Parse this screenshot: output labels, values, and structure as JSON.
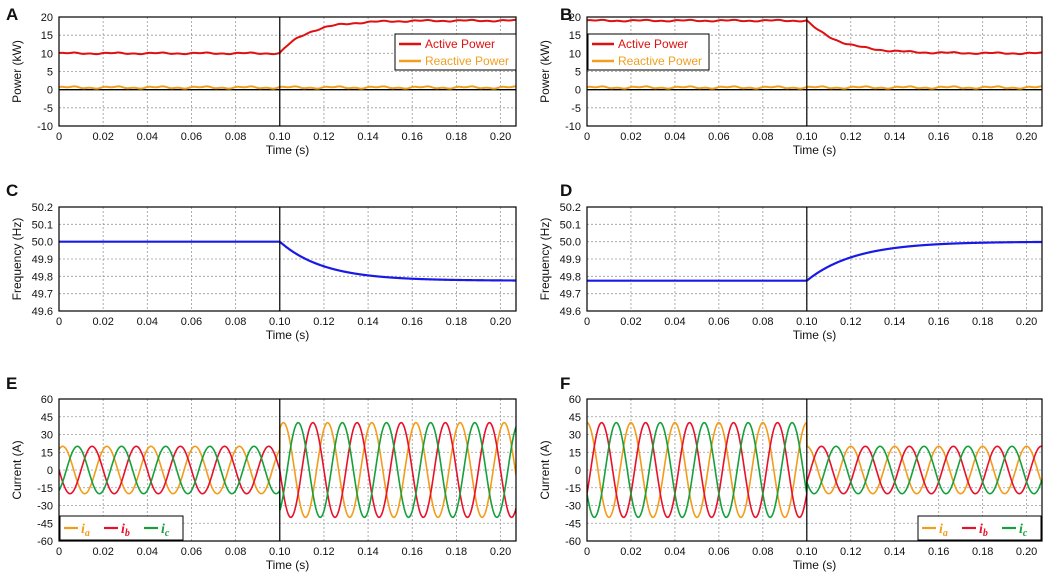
{
  "colors": {
    "active": "#e01010",
    "reactive": "#f0a020",
    "frequency": "#1a1ae6",
    "ia": "#f39c1a",
    "ib": "#e8102a",
    "ic": "#16a03c",
    "grid": "#9a9a9a",
    "zero_line": "#000000"
  },
  "chart_data": [
    {
      "panel": "A",
      "type": "line",
      "xlabel": "Time (s)",
      "ylabel": "Power (kW)",
      "xlim": [
        0,
        0.207
      ],
      "ylim": [
        -10,
        20
      ],
      "xticks": [
        0,
        0.02,
        0.04,
        0.06,
        0.08,
        0.1,
        0.12,
        0.14,
        0.16,
        0.18,
        0.2
      ],
      "xtick_labels": [
        "0",
        "0.02",
        "0.04",
        "0.06",
        "0.08",
        "0.10",
        "0.12",
        "0.14",
        "0.16",
        "0.18",
        "0.20"
      ],
      "yticks": [
        -10,
        -5,
        0,
        5,
        10,
        15,
        20
      ],
      "ytick_labels": [
        "-10",
        "-5",
        "0",
        "5",
        "10",
        "15",
        "20"
      ],
      "legend_position": "top-right",
      "series": [
        {
          "name": "Active Power",
          "kind": "step",
          "before": 10,
          "after": 19,
          "t_switch": 0.1,
          "tau": 0.013,
          "ripple": 0.25
        },
        {
          "name": "Reactive Power",
          "kind": "flat",
          "before": 0.6,
          "after": 0.6,
          "ripple": 0.35
        }
      ]
    },
    {
      "panel": "B",
      "type": "line",
      "xlabel": "Time (s)",
      "ylabel": "Power (kW)",
      "xlim": [
        0,
        0.207
      ],
      "ylim": [
        -10,
        20
      ],
      "xticks": [
        0,
        0.02,
        0.04,
        0.06,
        0.08,
        0.1,
        0.12,
        0.14,
        0.16,
        0.18,
        0.2
      ],
      "xtick_labels": [
        "0",
        "0.02",
        "0.04",
        "0.06",
        "0.08",
        "0.10",
        "0.12",
        "0.14",
        "0.16",
        "0.18",
        "0.20"
      ],
      "yticks": [
        -10,
        -5,
        0,
        5,
        10,
        15,
        20
      ],
      "ytick_labels": [
        "-10",
        "-5",
        "0",
        "5",
        "10",
        "15",
        "20"
      ],
      "legend_position": "top-left",
      "series": [
        {
          "name": "Active Power",
          "kind": "step",
          "before": 19,
          "after": 10,
          "t_switch": 0.1,
          "tau": 0.015,
          "ripple": 0.25
        },
        {
          "name": "Reactive Power",
          "kind": "flat",
          "before": 0.6,
          "after": 0.6,
          "ripple": 0.35
        }
      ]
    },
    {
      "panel": "C",
      "type": "line",
      "xlabel": "Time (s)",
      "ylabel": "Frequency (Hz)",
      "xlim": [
        0,
        0.207
      ],
      "ylim": [
        49.6,
        50.2
      ],
      "xticks": [
        0,
        0.02,
        0.04,
        0.06,
        0.08,
        0.1,
        0.12,
        0.14,
        0.16,
        0.18,
        0.2
      ],
      "xtick_labels": [
        "0",
        "0.02",
        "0.04",
        "0.06",
        "0.08",
        "0.10",
        "0.12",
        "0.14",
        "0.16",
        "0.18",
        "0.20"
      ],
      "yticks": [
        49.6,
        49.7,
        49.8,
        49.9,
        50.0,
        50.1,
        50.2
      ],
      "ytick_labels": [
        "49.6",
        "49.7",
        "49.8",
        "49.9",
        "50.0",
        "50.1",
        "50.2"
      ],
      "series": [
        {
          "name": "Frequency",
          "kind": "step",
          "before": 50.0,
          "after": 49.775,
          "t_switch": 0.1,
          "tau": 0.02,
          "ripple": 0
        }
      ]
    },
    {
      "panel": "D",
      "type": "line",
      "xlabel": "Time (s)",
      "ylabel": "Frequency (Hz)",
      "xlim": [
        0,
        0.207
      ],
      "ylim": [
        49.6,
        50.2
      ],
      "xticks": [
        0,
        0.02,
        0.04,
        0.06,
        0.08,
        0.1,
        0.12,
        0.14,
        0.16,
        0.18,
        0.2
      ],
      "xtick_labels": [
        "0",
        "0.02",
        "0.04",
        "0.06",
        "0.08",
        "0.10",
        "0.12",
        "0.14",
        "0.16",
        "0.18",
        "0.20"
      ],
      "yticks": [
        49.6,
        49.7,
        49.8,
        49.9,
        50.0,
        50.1,
        50.2
      ],
      "ytick_labels": [
        "49.6",
        "49.7",
        "49.8",
        "49.9",
        "50.0",
        "50.1",
        "50.2"
      ],
      "series": [
        {
          "name": "Frequency",
          "kind": "step",
          "before": 49.775,
          "after": 50.0,
          "t_switch": 0.1,
          "tau": 0.022,
          "ripple": 0
        }
      ]
    },
    {
      "panel": "E",
      "type": "line",
      "xlabel": "Time (s)",
      "ylabel": "Current (A)",
      "xlim": [
        0,
        0.207
      ],
      "ylim": [
        -60,
        60
      ],
      "xticks": [
        0,
        0.02,
        0.04,
        0.06,
        0.08,
        0.1,
        0.12,
        0.14,
        0.16,
        0.18,
        0.2
      ],
      "xtick_labels": [
        "0",
        "0.02",
        "0.04",
        "0.06",
        "0.08",
        "0.10",
        "0.12",
        "0.14",
        "0.16",
        "0.18",
        "0.20"
      ],
      "yticks": [
        -60,
        -45,
        -30,
        -15,
        0,
        15,
        30,
        45,
        60
      ],
      "ytick_labels": [
        "-60",
        "-45",
        "-30",
        "-15",
        "0",
        "15",
        "30",
        "45",
        "60"
      ],
      "legend_position": "bottom-left",
      "frequency_hz": 50,
      "t_switch": 0.1,
      "amplitude_before": 20,
      "amplitude_after": 40,
      "series": [
        {
          "name": "ia",
          "main": "i",
          "sub": "a",
          "phase_deg": 60
        },
        {
          "name": "ib",
          "main": "i",
          "sub": "b",
          "phase_deg": 180
        },
        {
          "name": "ic",
          "main": "i",
          "sub": "c",
          "phase_deg": -60
        }
      ]
    },
    {
      "panel": "F",
      "type": "line",
      "xlabel": "Time (s)",
      "ylabel": "Current (A)",
      "xlim": [
        0,
        0.207
      ],
      "ylim": [
        -60,
        60
      ],
      "xticks": [
        0,
        0.02,
        0.04,
        0.06,
        0.08,
        0.1,
        0.12,
        0.14,
        0.16,
        0.18,
        0.2
      ],
      "xtick_labels": [
        "0",
        "0.02",
        "0.04",
        "0.06",
        "0.08",
        "0.10",
        "0.12",
        "0.14",
        "0.16",
        "0.18",
        "0.20"
      ],
      "yticks": [
        -60,
        -45,
        -30,
        -15,
        0,
        15,
        30,
        45,
        60
      ],
      "ytick_labels": [
        "-60",
        "-45",
        "-30",
        "-15",
        "0",
        "15",
        "30",
        "45",
        "60"
      ],
      "legend_position": "bottom-right",
      "frequency_hz": 50,
      "t_switch": 0.1,
      "amplitude_before": 40,
      "amplitude_after": 20,
      "series": [
        {
          "name": "ia",
          "main": "i",
          "sub": "a",
          "phase_deg": 90
        },
        {
          "name": "ib",
          "main": "i",
          "sub": "b",
          "phase_deg": -30
        },
        {
          "name": "ic",
          "main": "i",
          "sub": "c",
          "phase_deg": 210
        }
      ]
    }
  ]
}
